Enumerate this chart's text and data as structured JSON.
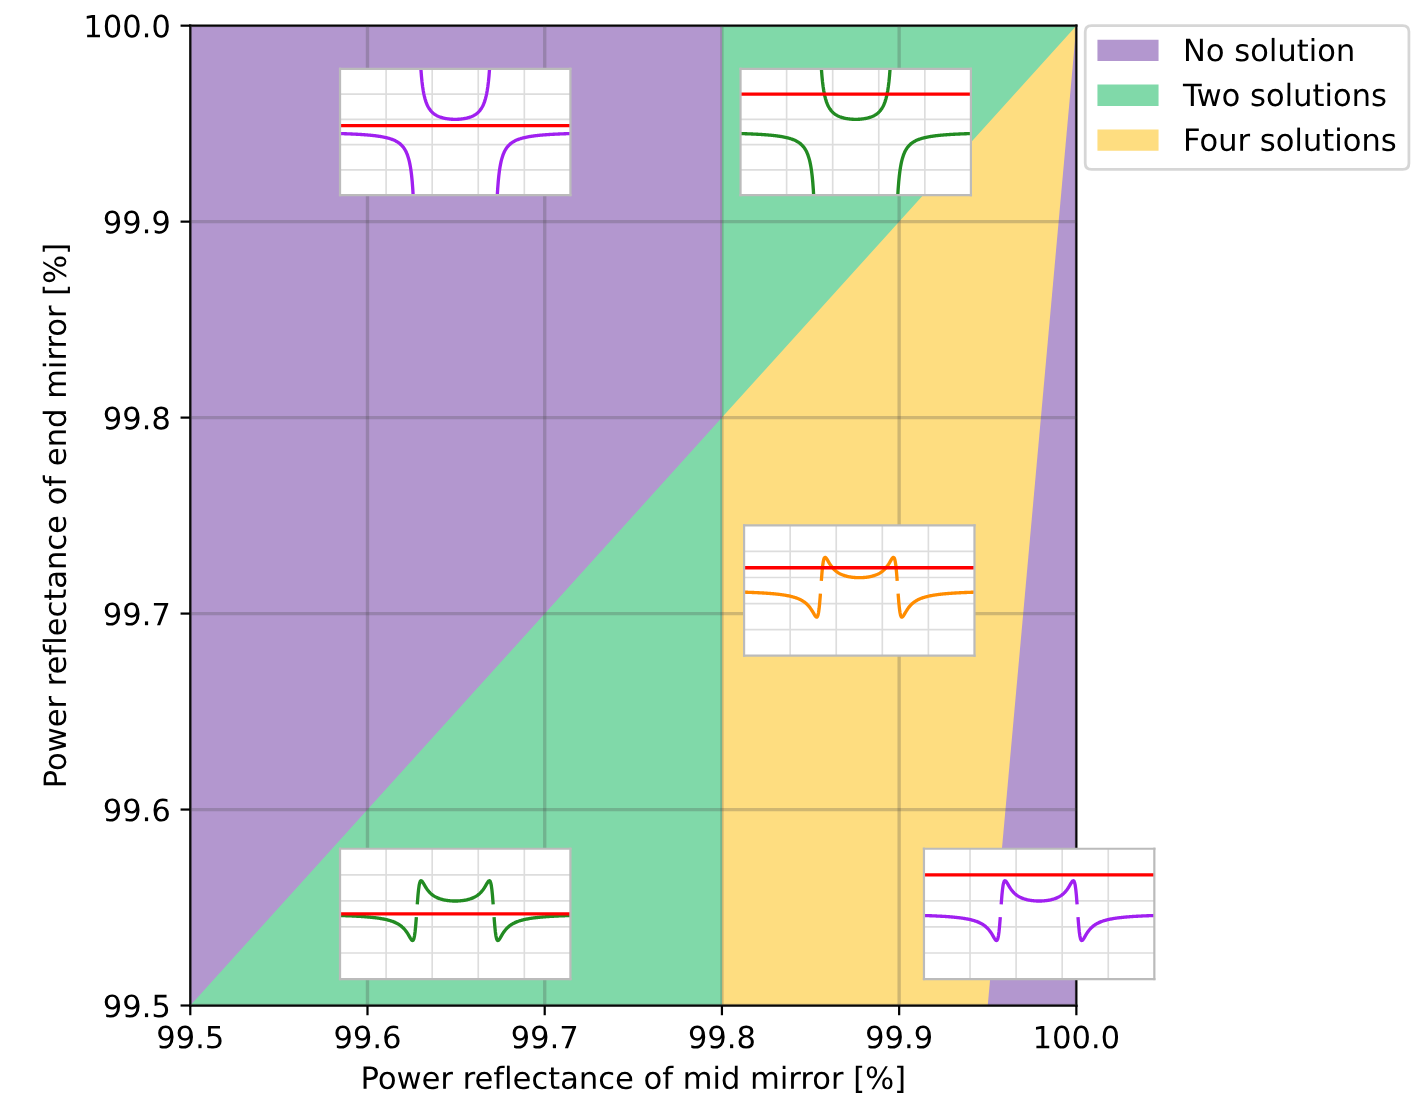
{
  "chart_data": {
    "type": "area",
    "xlabel": "Power reflectance of mid mirror [%]",
    "ylabel": "Power reflectance of end mirror [%]",
    "xlim": [
      99.5,
      100
    ],
    "ylim": [
      99.5,
      100
    ],
    "xticks": [
      99.5,
      99.6,
      99.7,
      99.8,
      99.9,
      {
        "value": 100,
        "label": "100.0"
      }
    ],
    "yticks": [
      99.5,
      99.6,
      99.7,
      99.8,
      99.9,
      {
        "value": 100,
        "label": "100.0"
      }
    ],
    "grid": true,
    "legend": "top right",
    "series": [
      {
        "name": "No solution",
        "color": "#b397cf",
        "x": [
          99.5,
          99.8
        ],
        "values": [
          100,
          100
        ]
      },
      {
        "name": "Two solutions",
        "color": "#80d9a9",
        "x": [
          99.5,
          99.8,
          99.8,
          100
        ],
        "values": [
          99.5,
          99.8,
          100,
          100
        ]
      },
      {
        "name": "Four solutions",
        "color": "#fedd80",
        "x": [
          99.8,
          99.95,
          100
        ],
        "values": [
          99.8,
          99.95,
          100
        ]
      },
      {
        "color": "#b397cf",
        "x": [
          99.95,
          100
        ],
        "values": [
          99.5,
          100
        ]
      }
    ]
  }
}
